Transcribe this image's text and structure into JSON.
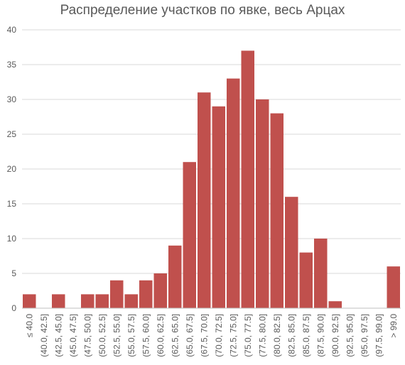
{
  "chart_data": {
    "type": "bar",
    "title": "Распределение участков по явке, весь Арцах",
    "xlabel": "",
    "ylabel": "",
    "ylim": [
      0,
      40
    ],
    "yticks": [
      "0",
      "5",
      "10",
      "15",
      "20",
      "25",
      "30",
      "35",
      "40"
    ],
    "grid": true,
    "legend": "none",
    "bar_color": "#c0504d",
    "categories": [
      "≤ 40.0",
      "(40.0, 42.5]",
      "(42.5, 45.0]",
      "(45.0, 47.5]",
      "(47.5, 50.0]",
      "(50.0, 52.5]",
      "(52.5, 55.0]",
      "(55.0, 57.5]",
      "(57.5, 60.0]",
      "(60.0, 62.5]",
      "(62.5, 65.0]",
      "(65.0, 67.5]",
      "(67.5, 70.0]",
      "(70.0, 72.5]",
      "(72.5, 75.0]",
      "(75.0, 77.5]",
      "(77.5, 80.0]",
      "(80.0, 82.5]",
      "(82.5, 85.0]",
      "(85.0, 87.5]",
      "(87.5, 90.0]",
      "(90.0, 92.5]",
      "(92.5, 95.0]",
      "(95.0, 97.5]",
      "(97.5, 99.0]",
      "> 99.0"
    ],
    "values": [
      2,
      0,
      2,
      0,
      2,
      2,
      4,
      2,
      4,
      5,
      9,
      21,
      31,
      29,
      33,
      37,
      30,
      28,
      16,
      8,
      10,
      1,
      0,
      0,
      0,
      6
    ]
  }
}
